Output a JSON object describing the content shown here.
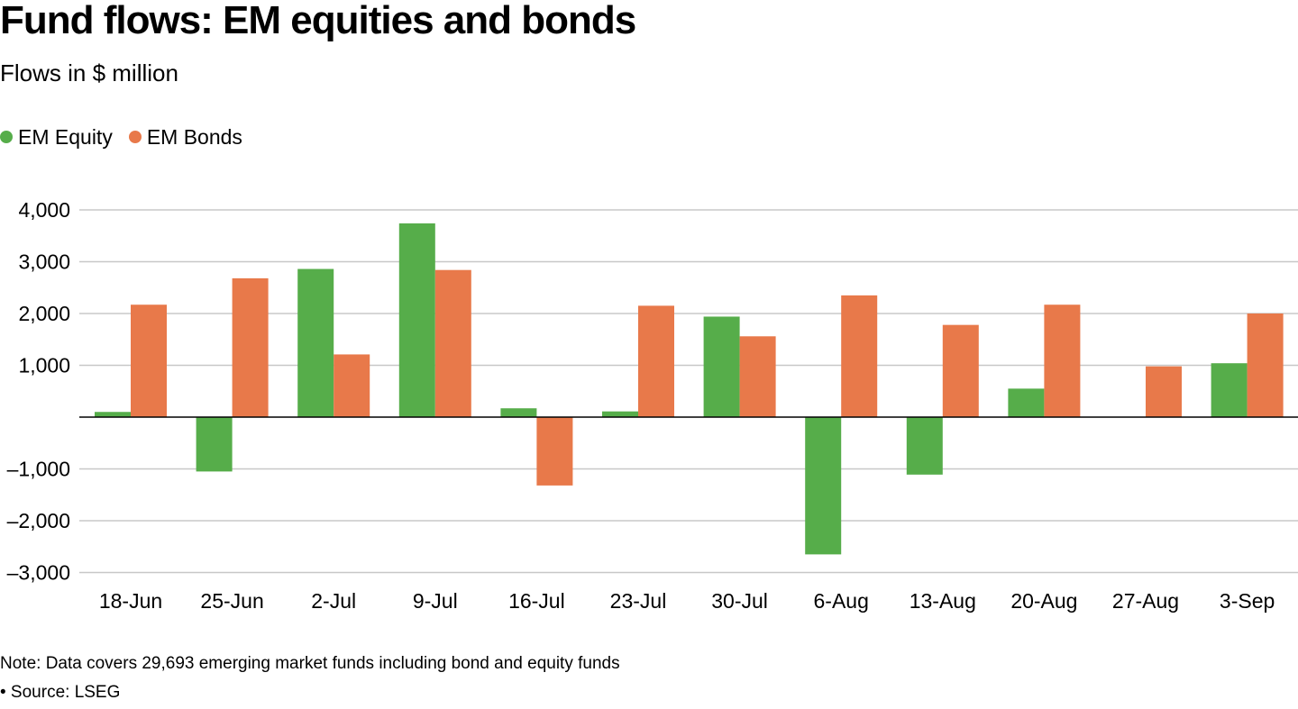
{
  "chart_data": {
    "type": "bar",
    "title": "Fund flows: EM equities and bonds",
    "subtitle": "Flows in $ million",
    "categories": [
      "18-Jun",
      "25-Jun",
      "2-Jul",
      "9-Jul",
      "16-Jul",
      "23-Jul",
      "30-Jul",
      "6-Aug",
      "13-Aug",
      "20-Aug",
      "27-Aug",
      "3-Sep"
    ],
    "series": [
      {
        "name": "EM Equity",
        "color": "#56ad4a",
        "values": [
          100,
          -1050,
          2860,
          3740,
          170,
          110,
          1940,
          -2650,
          -1110,
          550,
          0,
          1040
        ]
      },
      {
        "name": "EM Bonds",
        "color": "#e8794a",
        "values": [
          2170,
          2680,
          1210,
          2840,
          -1320,
          2150,
          1560,
          2350,
          1780,
          2170,
          980,
          2000
        ]
      }
    ],
    "ylim": [
      -3000,
      4000
    ],
    "yticks": [
      4000,
      3000,
      2000,
      1000,
      -1000,
      -2000,
      -3000
    ],
    "ytick_labels": [
      "4,000",
      "3,000",
      "2,000",
      "1,000",
      "–1,000",
      "–2,000",
      "–3,000"
    ],
    "grid": true,
    "legend_position": "top-left",
    "xlabel": "",
    "ylabel": ""
  },
  "footer": {
    "note": "Note: Data covers 29,693 emerging market funds including bond and equity funds",
    "source": "• Source: LSEG"
  }
}
